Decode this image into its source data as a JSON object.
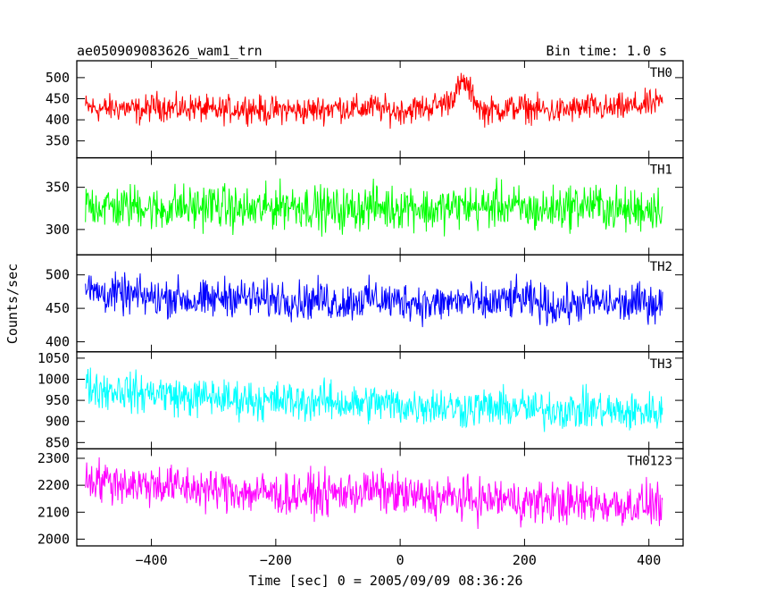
{
  "header": {
    "title": "ae050909083626_wam1_trn",
    "bin_time": "Bin time: 1.0 s"
  },
  "chart_data": {
    "type": "line",
    "title": "ae050909083626_wam1_trn",
    "subtitle": "Bin time: 1.0 s",
    "xlabel": "Time [sec] 0 = 2005/09/09 08:36:26",
    "ylabel": "Counts/sec",
    "xlim": [
      -520,
      455
    ],
    "x_ticks": [
      -400,
      -200,
      0,
      200,
      400
    ],
    "x_tick_labels": [
      "−400",
      "−200",
      "0",
      "200",
      "400"
    ],
    "x_range": [
      -506,
      422
    ],
    "bin_seconds": 1.0,
    "grid": false,
    "panels": [
      {
        "label": "TH0",
        "color": "#ff0000",
        "ylim": [
          310,
          540
        ],
        "y_ticks": [
          350,
          400,
          450,
          500
        ],
        "y_tick_labels": [
          "350",
          "400",
          "450",
          "500"
        ],
        "values": [
          430,
          425,
          430,
          420,
          435,
          425,
          430,
          420,
          425,
          430,
          420,
          425,
          420,
          425,
          430,
          425,
          430,
          420,
          425,
          430,
          440,
          490,
          420,
          425,
          430,
          425,
          420,
          425,
          430,
          425,
          430,
          435,
          440
        ],
        "noise_amplitude": 25
      },
      {
        "label": "TH1",
        "color": "#00ff00",
        "ylim": [
          270,
          385
        ],
        "y_ticks": [
          300,
          350
        ],
        "y_tick_labels": [
          "300",
          "350"
        ],
        "values": [
          330,
          328,
          325,
          330,
          322,
          328,
          325,
          330,
          325,
          322,
          325,
          330,
          328,
          325,
          322,
          325,
          328,
          325,
          330,
          322,
          325,
          328,
          325,
          330,
          325,
          322,
          325,
          328,
          330,
          325,
          322,
          325,
          328
        ],
        "noise_amplitude": 20
      },
      {
        "label": "TH2",
        "color": "#0000ff",
        "ylim": [
          385,
          530
        ],
        "y_ticks": [
          400,
          450,
          500
        ],
        "y_tick_labels": [
          "400",
          "450",
          "500"
        ],
        "values": [
          478,
          472,
          470,
          468,
          465,
          468,
          460,
          462,
          470,
          465,
          462,
          466,
          460,
          464,
          458,
          462,
          465,
          460,
          462,
          455,
          458,
          462,
          455,
          460,
          465,
          458,
          452,
          455,
          460,
          458,
          455,
          460,
          458
        ],
        "noise_amplitude": 22
      },
      {
        "label": "TH3",
        "color": "#00ffff",
        "ylim": [
          835,
          1065
        ],
        "y_ticks": [
          850,
          900,
          950,
          1000,
          1050
        ],
        "y_tick_labels": [
          "850",
          "900",
          "950",
          "1000",
          "1050"
        ],
        "values": [
          985,
          975,
          975,
          965,
          970,
          960,
          955,
          960,
          950,
          955,
          945,
          950,
          945,
          950,
          945,
          940,
          945,
          940,
          935,
          940,
          935,
          930,
          935,
          930,
          935,
          925,
          930,
          925,
          930,
          925,
          920,
          925,
          922
        ],
        "noise_amplitude": 35
      },
      {
        "label": "TH0123",
        "color": "#ff00ff",
        "ylim": [
          1975,
          2335
        ],
        "y_ticks": [
          2000,
          2100,
          2200,
          2300
        ],
        "y_tick_labels": [
          "2000",
          "2100",
          "2200",
          "2300"
        ],
        "values": [
          2230,
          2215,
          2210,
          2200,
          2205,
          2195,
          2190,
          2180,
          2185,
          2170,
          2175,
          2160,
          2170,
          2165,
          2170,
          2175,
          2180,
          2170,
          2160,
          2150,
          2155,
          2150,
          2145,
          2150,
          2140,
          2135,
          2140,
          2130,
          2135,
          2130,
          2125,
          2130,
          2130
        ],
        "noise_amplitude": 60
      }
    ]
  }
}
